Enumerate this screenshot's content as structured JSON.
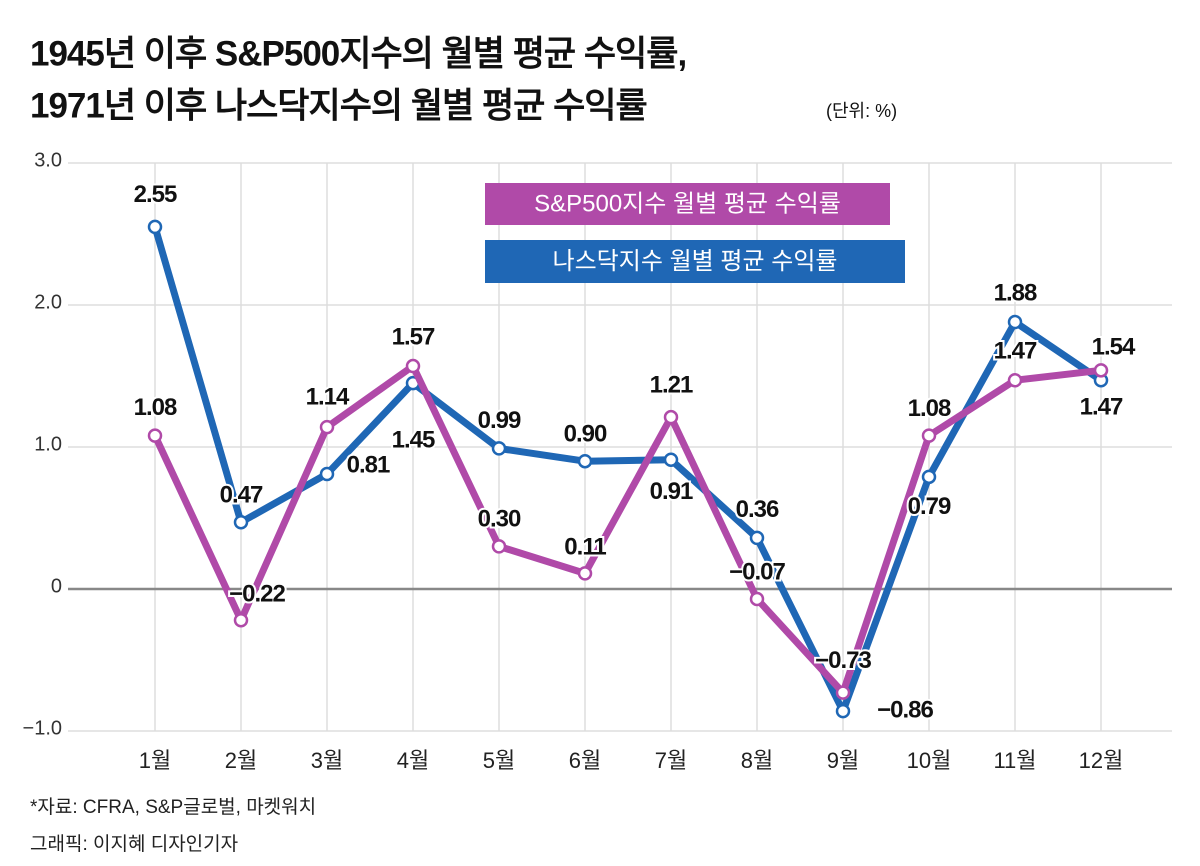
{
  "chart_data": {
    "type": "line",
    "title": [
      "1945년 이후 S&P500지수의 월별 평균 수익률,",
      "1971년 이후 나스닥지수의 월별 평균 수익률"
    ],
    "unit": "(단위: %)",
    "source": "*자료: CFRA, S&P글로벌, 마켓워치",
    "credit": "그래픽: 이지혜 디자인기자",
    "categories": [
      "1월",
      "2월",
      "3월",
      "4월",
      "5월",
      "6월",
      "7월",
      "8월",
      "9월",
      "10월",
      "11월",
      "12월"
    ],
    "series": [
      {
        "name": "S&P500지수 월별 평균 수익률",
        "color": "#b04aa8",
        "values": [
          1.08,
          -0.22,
          1.14,
          1.57,
          0.3,
          0.11,
          1.21,
          -0.07,
          -0.73,
          1.08,
          1.47,
          1.54
        ],
        "value_labels": [
          "1.08",
          "−0.22",
          "1.14",
          "1.57",
          "0.30",
          "0.11",
          "1.21",
          "−0.07",
          "−0.73",
          "1.08",
          "1.47",
          "1.54"
        ]
      },
      {
        "name": "나스닥지수 월별 평균 수익률",
        "color": "#1f67b5",
        "values": [
          2.55,
          0.47,
          0.81,
          1.45,
          0.99,
          0.9,
          0.91,
          0.36,
          -0.86,
          0.79,
          1.88,
          1.47
        ],
        "value_labels": [
          "2.55",
          "0.47",
          "0.81",
          "1.45",
          "0.99",
          "0.90",
          "0.91",
          "0.36",
          "−0.86",
          "0.79",
          "1.88",
          "1.47"
        ]
      }
    ],
    "ylim": [
      -1,
      3
    ],
    "yticks": [
      {
        "value": -1,
        "label": "−1.0"
      },
      0,
      {
        "value": 1,
        "label": "1.0"
      },
      {
        "value": 2,
        "label": "2.0"
      },
      {
        "value": 3,
        "label": "3.0"
      }
    ],
    "grid": true
  }
}
